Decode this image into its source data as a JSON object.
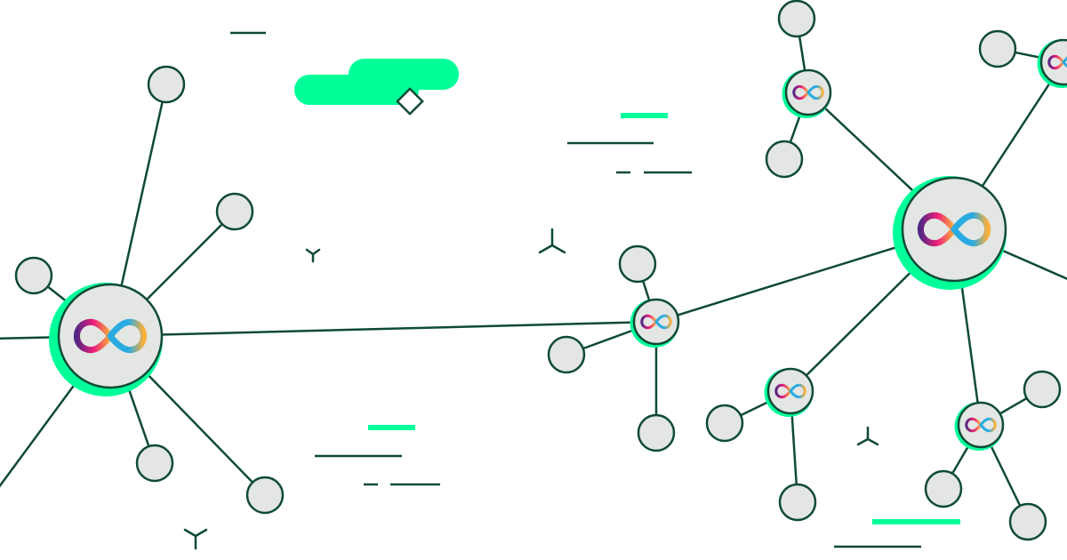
{
  "colors": {
    "background": "#ffffff",
    "edge": "#0f4a37",
    "node_fill": "#e3e6e3",
    "accent_green": "#00ff99",
    "logo_gradient": [
      "#29abe2",
      "#522785",
      "#ed1e79",
      "#f15a24",
      "#fbb03b"
    ]
  },
  "icons": {
    "hub_logo": "infinity-logo-icon",
    "leaf": "circle-node",
    "decoration": [
      "tri-star-icon",
      "diamond-icon"
    ]
  },
  "network": {
    "hubs": [
      {
        "id": "hub-left",
        "logo": "infinity-logo-icon"
      },
      {
        "id": "hub-right-large",
        "logo": "infinity-logo-icon"
      },
      {
        "id": "hub-center-small",
        "logo": "infinity-logo-icon"
      },
      {
        "id": "hub-top",
        "logo": "infinity-logo-icon"
      },
      {
        "id": "hub-top-right",
        "logo": "infinity-logo-icon"
      },
      {
        "id": "hub-bottom-mid",
        "logo": "infinity-logo-icon"
      },
      {
        "id": "hub-bottom-right",
        "logo": "infinity-logo-icon"
      }
    ]
  }
}
